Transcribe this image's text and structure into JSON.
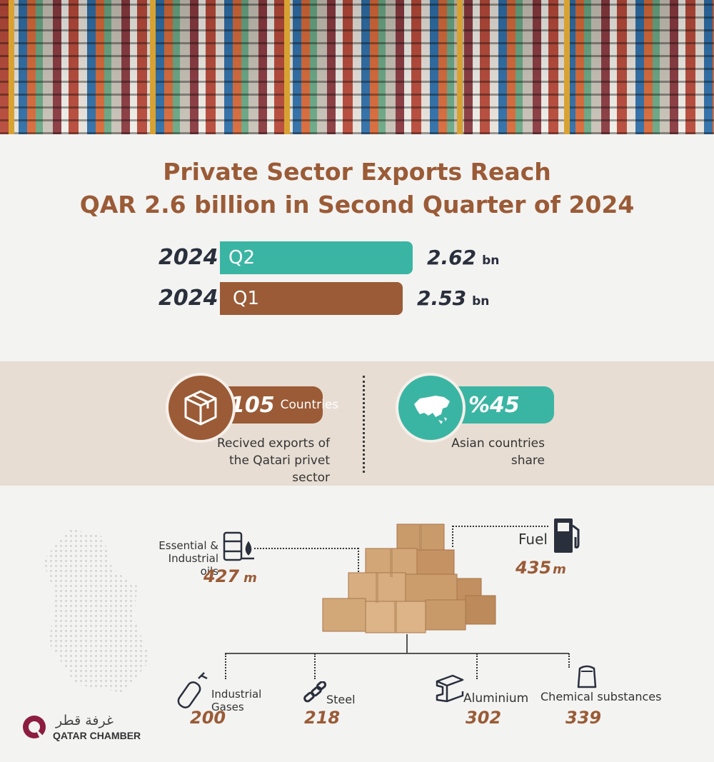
{
  "title": {
    "line1": "Private Sector Exports Reach",
    "line2": "QAR 2.6 billion in Second Quarter of 2024"
  },
  "chart_data": {
    "type": "bar",
    "orientation": "horizontal",
    "categories": [
      "2024 Q2",
      "2024 Q1"
    ],
    "rows": [
      {
        "year": "2024",
        "quarter": "Q2",
        "value": 2.62,
        "value_label": "2.62",
        "unit": "bn",
        "color": "#3bb5a3"
      },
      {
        "year": "2024",
        "quarter": "Q1",
        "value": 2.53,
        "value_label": "2.53",
        "unit": "bn",
        "color": "#9a5b36"
      }
    ]
  },
  "stats": {
    "countries": {
      "value": "105",
      "unit": "Countries",
      "caption1": "Recived exports of",
      "caption2": "the Qatari privet sector",
      "icon": "box-icon"
    },
    "asia": {
      "value": "%45",
      "caption1": "Asian countries",
      "caption2": "share",
      "icon": "asia-map-icon"
    }
  },
  "products": {
    "oils": {
      "label1": "Essential &",
      "label2": "Industrial oils",
      "value": "427",
      "unit": "m"
    },
    "fuel": {
      "label": "Fuel",
      "value": "435",
      "unit": "m"
    },
    "gases": {
      "label1": "Industrial",
      "label2": "Gases",
      "value": "200"
    },
    "steel": {
      "label": "Steel",
      "value": "218"
    },
    "aluminium": {
      "label": "Aluminium",
      "value": "302"
    },
    "chemical": {
      "label": "Chemical substances",
      "value": "339"
    }
  },
  "logo": {
    "arabic": "غرفة قطر",
    "english": "QATAR CHAMBER"
  },
  "colors": {
    "brown": "#9a5b36",
    "teal": "#3bb5a3",
    "navy": "#2a2f3c",
    "band": "#e7ddd3"
  }
}
